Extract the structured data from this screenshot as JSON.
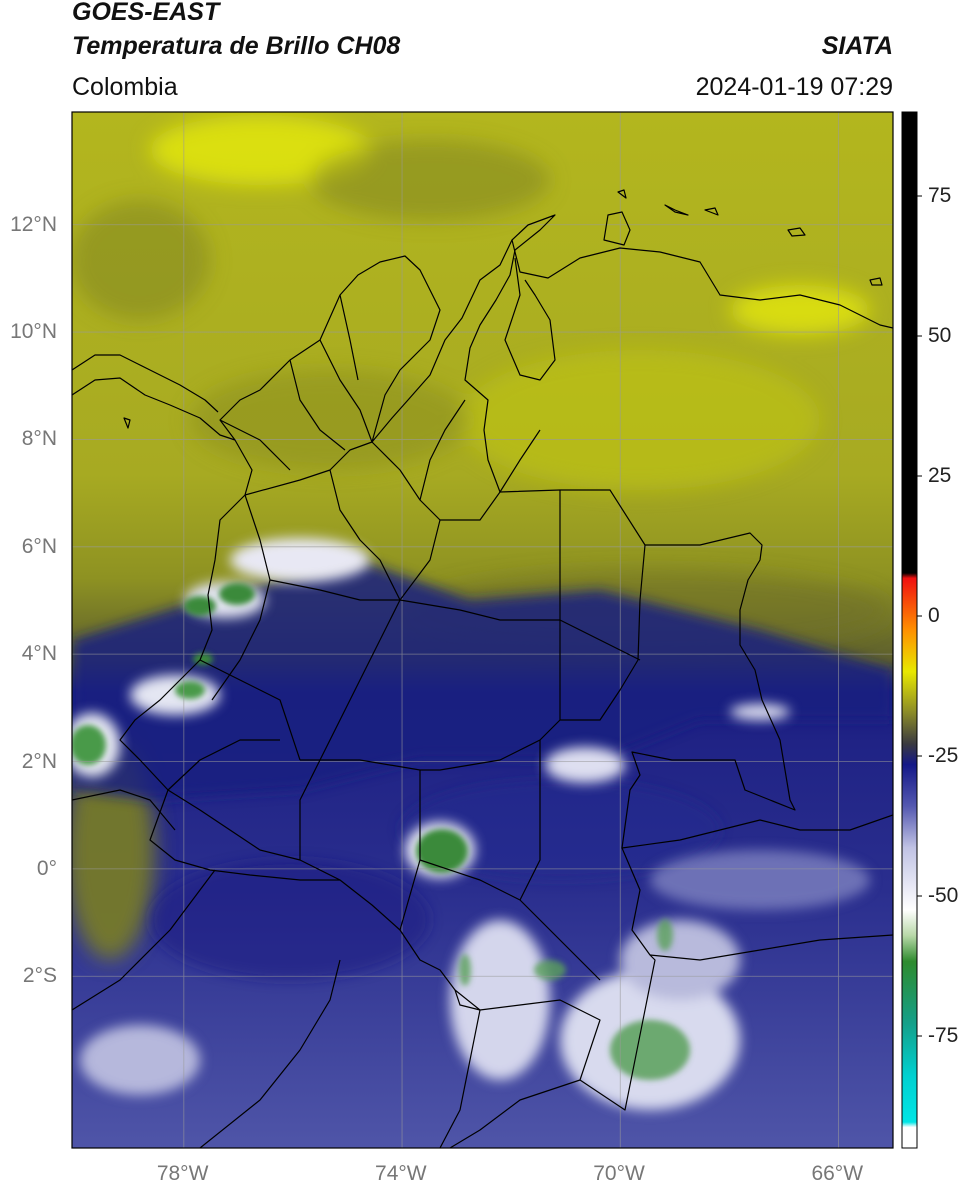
{
  "header": {
    "satellite": "GOES-EAST",
    "product": "Temperatura de Brillo CH08",
    "brand": "SIATA",
    "region": "Colombia",
    "datetime": "2024-01-19 07:29"
  },
  "axes": {
    "lat_labels": [
      {
        "lat": 12,
        "text": "12°N"
      },
      {
        "lat": 10,
        "text": "10°N"
      },
      {
        "lat": 8,
        "text": "8°N"
      },
      {
        "lat": 6,
        "text": "6°N"
      },
      {
        "lat": 4,
        "text": "4°N"
      },
      {
        "lat": 2,
        "text": "2°N"
      },
      {
        "lat": 0,
        "text": "0°"
      },
      {
        "lat": -2,
        "text": "2°S"
      }
    ],
    "lon_labels": [
      {
        "lon": -78,
        "text": "78°W"
      },
      {
        "lon": -74,
        "text": "74°W"
      },
      {
        "lon": -70,
        "text": "70°W"
      },
      {
        "lon": -66,
        "text": "66°W"
      }
    ],
    "lon_range": [
      -80.05,
      -65.0
    ],
    "lat_range": [
      -5.2,
      14.1
    ]
  },
  "colorbar": {
    "range": [
      -95,
      90
    ],
    "ticks": [
      {
        "value": 75,
        "text": "75"
      },
      {
        "value": 50,
        "text": "50"
      },
      {
        "value": 25,
        "text": "25"
      },
      {
        "value": 0,
        "text": "0"
      },
      {
        "value": -25,
        "text": "-25"
      },
      {
        "value": -50,
        "text": "-50"
      },
      {
        "value": -75,
        "text": "-75"
      }
    ],
    "colors": {
      "white": "#ffffff",
      "cyan": "#00e0e0",
      "teal": "#14a08c",
      "green": "#2e8b2e",
      "light_green": "#b8d8b0",
      "lavender": "#d8d8ee",
      "blue": "#4a4ea8",
      "navy": "#141888",
      "dark_olive": "#4a4a30",
      "olive": "#a8a820",
      "yellow": "#f0f000",
      "orange": "#ff8000",
      "red": "#f01010",
      "black": "#000000"
    }
  },
  "colors": {
    "olive_bg": "#a9ad22",
    "bright_yellow": "#dfe30b",
    "dark_band": "#767a20",
    "navy": "#181c80",
    "blue": "#4e54a6",
    "white_cloud": "#e6e8f2",
    "cold_green": "#3a8a3a",
    "border": "#000000",
    "grid": "#9a9a9a"
  }
}
